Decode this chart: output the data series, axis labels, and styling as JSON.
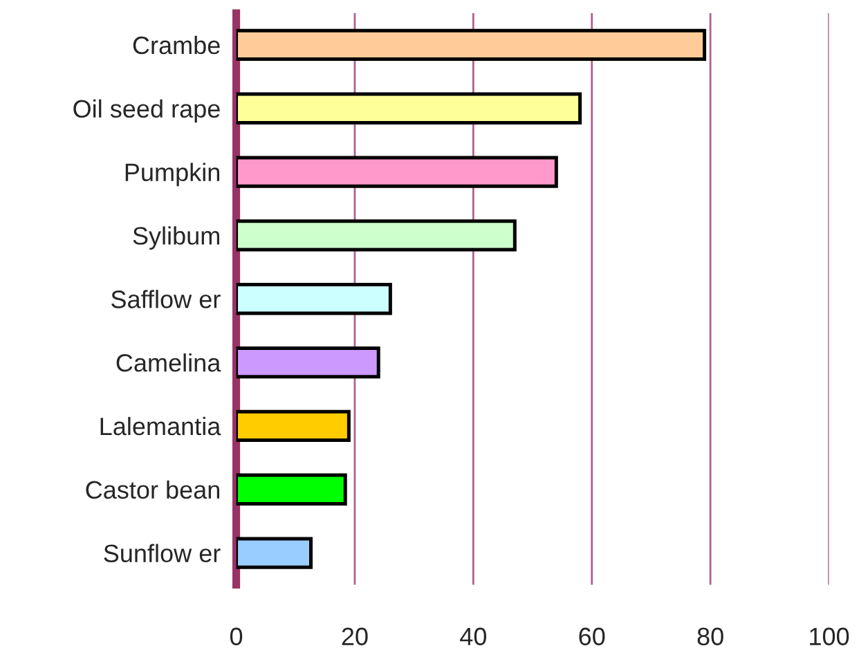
{
  "chart_data": {
    "type": "bar",
    "orientation": "horizontal",
    "categories": [
      "Crambe",
      "Oil seed rape",
      "Pumpkin",
      "Sylibum",
      "Safflow er",
      "Camelina",
      "Lalemantia",
      "Castor bean",
      "Sunflow er"
    ],
    "values": [
      79,
      58,
      54,
      47,
      26,
      24,
      19,
      18.4,
      12.6
    ],
    "colors": [
      "#ffcc99",
      "#ffff99",
      "#ff99cc",
      "#ccffcc",
      "#ccffff",
      "#cc99ff",
      "#ffcc00",
      "#00ff00",
      "#99ccff"
    ],
    "xlim": [
      0,
      100
    ],
    "xticks": [
      0,
      20,
      40,
      60,
      80,
      100
    ],
    "grid": "x"
  }
}
